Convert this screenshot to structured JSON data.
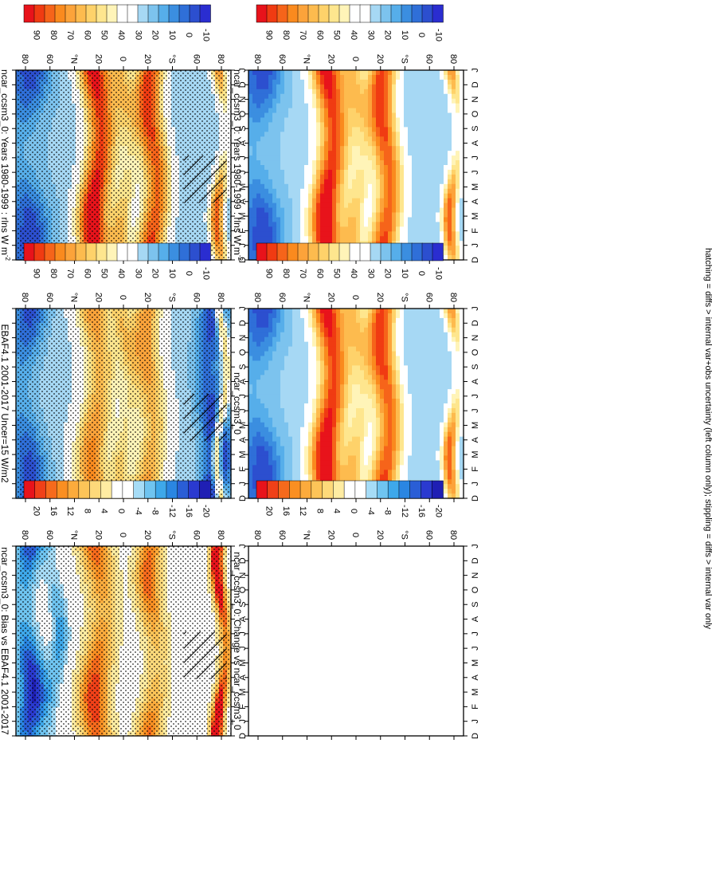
{
  "footer": "hatching = diffs > internal var+obs uncertainty (left column only); stippling = diffs > internal var only",
  "palettes": {
    "abs": [
      "#e8131b",
      "#f03b12",
      "#f6641a",
      "#fa8a1e",
      "#fca33a",
      "#fdbb4e",
      "#fed26a",
      "#fee68e",
      "#fff4b8",
      "#ffffff",
      "#ffffff",
      "#a6d8f4",
      "#7cc3ee",
      "#56aeea",
      "#3b8ee0",
      "#2f6fd8",
      "#2c4fcf",
      "#2a2dd0"
    ],
    "diff": [
      "#e8131b",
      "#f04018",
      "#f66a1c",
      "#fa8f22",
      "#fcab3c",
      "#fdc458",
      "#fed97a",
      "#ffeca2",
      "#ffffff",
      "#ffffff",
      "#a6dcf6",
      "#6fc4f0",
      "#3ea8ea",
      "#2a86e2",
      "#2a5ed6",
      "#2a3ad0",
      "#1f1fb4"
    ]
  },
  "chart_data": [
    {
      "type": "heatmap",
      "panel": "left-top",
      "title": "ncar_ccsm3_0: Years 1980-1999 : rlns W m",
      "title_superscript": "-2",
      "y_ticks": [
        "D",
        "J",
        "F",
        "M",
        "A",
        "M",
        "J",
        "J",
        "A",
        "S",
        "O",
        "N",
        "D",
        "J"
      ],
      "x_ticks": [
        "80",
        "60",
        "°N",
        "20",
        "0",
        "20",
        "°S",
        "60",
        "80"
      ],
      "colorbar": {
        "labels": [
          "90",
          "80",
          "70",
          "60",
          "50",
          "40",
          "30",
          "20",
          "10",
          "0",
          "-10"
        ],
        "palette": "abs"
      },
      "ridges": [
        {
          "lat": 21,
          "peak": 92,
          "width": 13,
          "amp": 6,
          "phase": 0.4
        },
        {
          "lat": -25,
          "peak": 85,
          "width": 12,
          "amp": 5,
          "phase": 4.0
        },
        {
          "lat": -2,
          "peak": 58,
          "width": 9,
          "amp": 7,
          "phase": 1.5
        },
        {
          "lat": 80,
          "peak": 20,
          "width": 16,
          "amp": 10,
          "phase": 7.5
        },
        {
          "lat": -82,
          "peak": 65,
          "width": 6,
          "amp": 20,
          "phase": 0.2
        }
      ],
      "background": 36,
      "overlay": "stipple+hatch"
    },
    {
      "type": "heatmap",
      "panel": "right-top",
      "title": "ncar_ccsm3_0: Years 1980-1999 : rlns W m",
      "title_superscript": "-2",
      "y_ticks": [
        "D",
        "J",
        "F",
        "M",
        "A",
        "M",
        "J",
        "J",
        "A",
        "S",
        "O",
        "N",
        "D",
        "J"
      ],
      "x_ticks": [
        "80",
        "60",
        "°N",
        "20",
        "0",
        "20",
        "°S",
        "60",
        "80"
      ],
      "colorbar": {
        "labels": [
          "90",
          "80",
          "70",
          "60",
          "50",
          "40",
          "30",
          "20",
          "10",
          "0",
          "-10"
        ],
        "palette": "abs"
      },
      "ridges": [
        {
          "lat": 21,
          "peak": 92,
          "width": 13,
          "amp": 6,
          "phase": 0.4
        },
        {
          "lat": -25,
          "peak": 85,
          "width": 12,
          "amp": 5,
          "phase": 4.0
        },
        {
          "lat": -2,
          "peak": 58,
          "width": 9,
          "amp": 7,
          "phase": 1.5
        },
        {
          "lat": 80,
          "peak": 20,
          "width": 16,
          "amp": 10,
          "phase": 7.5
        },
        {
          "lat": -82,
          "peak": 65,
          "width": 6,
          "amp": 20,
          "phase": 0.2
        }
      ],
      "background": 36,
      "overlay": "none"
    },
    {
      "type": "heatmap",
      "panel": "left-middle",
      "title": "EBAF4.1 2001-2017 Uncer=15 W/m2",
      "title_superscript": "",
      "y_ticks": [
        "D",
        "J",
        "F",
        "M",
        "A",
        "M",
        "J",
        "J",
        "A",
        "S",
        "O",
        "N",
        "D",
        "J"
      ],
      "x_ticks": [
        "80",
        "60",
        "°N",
        "20",
        "0",
        "20",
        "°S",
        "60",
        "80"
      ],
      "colorbar": {
        "labels": [
          "90",
          "80",
          "70",
          "60",
          "50",
          "40",
          "30",
          "20",
          "10",
          "0",
          "-10"
        ],
        "palette": "abs"
      },
      "ridges": [
        {
          "lat": 22,
          "peak": 72,
          "width": 14,
          "amp": 5,
          "phase": 0.4
        },
        {
          "lat": -22,
          "peak": 70,
          "width": 13,
          "amp": 4,
          "phase": 4.0
        },
        {
          "lat": -2,
          "peak": 55,
          "width": 8,
          "amp": 5,
          "phase": 1.5
        },
        {
          "lat": 80,
          "peak": 20,
          "width": 14,
          "amp": 8,
          "phase": 7.5
        },
        {
          "lat": -75,
          "peak": 10,
          "width": 12,
          "amp": 8,
          "phase": 6.0
        },
        {
          "lat": -82,
          "peak": 75,
          "width": 4,
          "amp": 15,
          "phase": 0.2
        }
      ],
      "background": 38,
      "overlay": "stipple+hatch"
    },
    {
      "type": "heatmap",
      "panel": "right-middle",
      "title": "ncar_ccsm3_0",
      "title_superscript": "",
      "y_ticks": [
        "D",
        "J",
        "F",
        "M",
        "A",
        "M",
        "J",
        "J",
        "A",
        "S",
        "O",
        "N",
        "D",
        "J"
      ],
      "x_ticks": [
        "80",
        "60",
        "°N",
        "20",
        "0",
        "20",
        "°S",
        "60",
        "80"
      ],
      "colorbar": {
        "labels": [
          "90",
          "80",
          "70",
          "60",
          "50",
          "40",
          "30",
          "20",
          "10",
          "0",
          "-10"
        ],
        "palette": "abs"
      },
      "ridges": [
        {
          "lat": 21,
          "peak": 92,
          "width": 13,
          "amp": 6,
          "phase": 0.4
        },
        {
          "lat": -25,
          "peak": 85,
          "width": 12,
          "amp": 5,
          "phase": 4.0
        },
        {
          "lat": -2,
          "peak": 58,
          "width": 9,
          "amp": 7,
          "phase": 1.5
        },
        {
          "lat": 80,
          "peak": 20,
          "width": 16,
          "amp": 10,
          "phase": 7.5
        },
        {
          "lat": -82,
          "peak": 65,
          "width": 6,
          "amp": 20,
          "phase": 0.2
        }
      ],
      "background": 36,
      "overlay": "none"
    },
    {
      "type": "heatmap",
      "panel": "left-bottom",
      "title": "ncar_ccsm3_0: Bias vs EBAF4.1 2001-2017",
      "title_superscript": "",
      "y_ticks": [
        "D",
        "J",
        "F",
        "M",
        "A",
        "M",
        "J",
        "J",
        "A",
        "S",
        "O",
        "N",
        "D",
        "J"
      ],
      "x_ticks": [
        "80",
        "60",
        "°N",
        "20",
        "0",
        "20",
        "°S",
        "60",
        "80"
      ],
      "colorbar": {
        "labels": [
          "20",
          "16",
          "12",
          "8",
          "4",
          "0",
          "-4",
          "-8",
          "-12",
          "-16",
          "-20"
        ],
        "palette": "diff"
      },
      "ridges": [
        {
          "lat": 20,
          "peak": 14,
          "width": 12,
          "amp": 5,
          "phase": 0.4
        },
        {
          "lat": -25,
          "peak": 11,
          "width": 10,
          "amp": 5,
          "phase": 4.0
        },
        {
          "lat": 78,
          "peak": -14,
          "width": 12,
          "amp": 6,
          "phase": 6.0
        },
        {
          "lat": 55,
          "peak": -7,
          "width": 8,
          "amp": 3,
          "phase": 2.0
        },
        {
          "lat": -82,
          "peak": 20,
          "width": 5,
          "amp": 8,
          "phase": 3.0
        }
      ],
      "background": 0,
      "overlay": "stipple+hatch"
    },
    {
      "type": "heatmap",
      "panel": "right-bottom",
      "title": "ncar_ccsm3_0: Change vs ncar_ccsm3_0",
      "title_superscript": "",
      "y_ticks": [
        "D",
        "J",
        "F",
        "M",
        "A",
        "M",
        "J",
        "J",
        "A",
        "S",
        "O",
        "N",
        "D",
        "J"
      ],
      "x_ticks": [
        "80",
        "60",
        "°N",
        "20",
        "0",
        "20",
        "°S",
        "60",
        "80"
      ],
      "colorbar": {
        "labels": [
          "20",
          "16",
          "12",
          "8",
          "4",
          "0",
          "-4",
          "-8",
          "-12",
          "-16",
          "-20"
        ],
        "palette": "diff"
      },
      "ridges": [],
      "background": 0,
      "overlay": "none",
      "empty": true
    }
  ]
}
